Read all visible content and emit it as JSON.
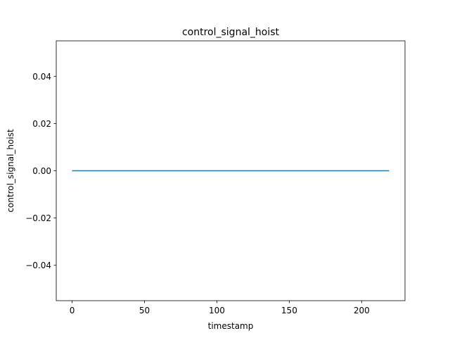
{
  "chart_data": {
    "type": "line",
    "title": "control_signal_hoist",
    "xlabel": "timestamp",
    "ylabel": "control_signal_hoist",
    "xlim": [
      -10.95,
      229.95
    ],
    "ylim": [
      -0.055,
      0.055
    ],
    "x_ticks": [
      0,
      50,
      100,
      150,
      200
    ],
    "x_tick_labels": [
      "0",
      "50",
      "100",
      "150",
      "200"
    ],
    "y_ticks": [
      -0.04,
      -0.02,
      0.0,
      0.02,
      0.04
    ],
    "y_tick_labels": [
      "−0.04",
      "−0.02",
      "0.00",
      "0.02",
      "0.04"
    ],
    "grid": false,
    "series": [
      {
        "color": "#1f77b4",
        "x": [
          0,
          219
        ],
        "y": [
          0,
          0
        ]
      }
    ]
  }
}
